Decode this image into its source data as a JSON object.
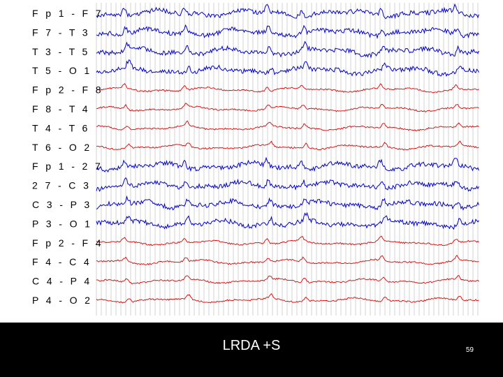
{
  "eeg": {
    "channels": [
      {
        "label": "F p 1 - F 7",
        "color": "#0000cc",
        "side": "left"
      },
      {
        "label": "F 7 - T 3",
        "color": "#0000cc",
        "side": "left"
      },
      {
        "label": "T 3 - T 5",
        "color": "#0000cc",
        "side": "left"
      },
      {
        "label": "T 5 - O 1",
        "color": "#0000cc",
        "side": "left"
      },
      {
        "label": "F p 2 - F 8",
        "color": "#dd0000",
        "side": "right"
      },
      {
        "label": "F 8 - T 4",
        "color": "#dd0000",
        "side": "right"
      },
      {
        "label": "T 4 - T 6",
        "color": "#dd0000",
        "side": "right"
      },
      {
        "label": "T 6 - O 2",
        "color": "#dd0000",
        "side": "right"
      },
      {
        "label": "F p 1 - 2 7",
        "color": "#0000cc",
        "side": "left"
      },
      {
        "label": "2 7 - C 3",
        "color": "#0000cc",
        "side": "left"
      },
      {
        "label": "C 3 - P 3",
        "color": "#0000cc",
        "side": "left"
      },
      {
        "label": "P 3 - O 1",
        "color": "#0000cc",
        "side": "left"
      },
      {
        "label": "F p 2 - F 4",
        "color": "#dd0000",
        "side": "right"
      },
      {
        "label": "F 4 - C 4",
        "color": "#dd0000",
        "side": "right"
      },
      {
        "label": "C 4 - P 4",
        "color": "#dd0000",
        "side": "right"
      },
      {
        "label": "P 4 - O 2",
        "color": "#dd0000",
        "side": "right"
      }
    ],
    "grid_color": "#c8c8c8"
  },
  "slide": {
    "caption": "LRDA +S",
    "number": "59"
  }
}
